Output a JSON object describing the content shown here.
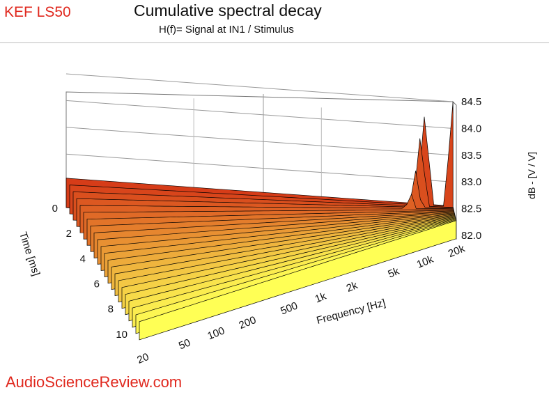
{
  "header": {
    "brand": "KEF LS50",
    "title": "Cumulative spectral decay",
    "subtitle": "H(f)= Signal at IN1 / Stimulus"
  },
  "footer": {
    "watermark": "AudioScienceReview.com"
  },
  "chart_data": {
    "type": "waterfall",
    "title": "Cumulative spectral decay",
    "subtitle": "H(f)= Signal at IN1 / Stimulus",
    "xlabel": "Frequency [Hz]",
    "ylabel": "Time [ms]",
    "zlabel": "dB - [V / V]",
    "x_scale": "log",
    "xlim": [
      20,
      20000
    ],
    "x_ticks": [
      20,
      50,
      100,
      200,
      500,
      1000,
      2000,
      5000,
      10000,
      20000
    ],
    "x_tick_labels": [
      "20",
      "50",
      "100",
      "200",
      "500",
      "1k",
      "2k",
      "5k",
      "10k",
      "20k"
    ],
    "ylim": [
      0,
      11
    ],
    "y_ticks": [
      0,
      2,
      4,
      6,
      8,
      10
    ],
    "y_tick_labels": [
      "0",
      "2",
      "4",
      "6",
      "8",
      "10"
    ],
    "zlim": [
      82.0,
      84.5
    ],
    "z_ticks": [
      82.0,
      82.5,
      83.0,
      83.5,
      84.0,
      84.5
    ],
    "z_tick_labels": [
      "82.0",
      "82.5",
      "83.0",
      "83.5",
      "84.0",
      "84.5"
    ],
    "slice_times_ms": [
      0,
      0.5,
      1,
      1.5,
      2,
      2.5,
      3,
      3.5,
      4,
      4.5,
      5,
      5.5,
      6,
      6.5,
      7,
      7.5,
      8,
      8.5,
      9,
      9.5,
      10,
      10.5
    ],
    "peaks": [
      {
        "time_ms": 0.5,
        "freq_hz": 20000,
        "level_db": 84.5
      },
      {
        "time_ms": 0.5,
        "freq_hz": 12000,
        "level_db": 84.2
      },
      {
        "time_ms": 1.0,
        "freq_hz": 11000,
        "level_db": 83.8
      },
      {
        "time_ms": 1.5,
        "freq_hz": 10000,
        "level_db": 83.2
      },
      {
        "time_ms": 2.0,
        "freq_hz": 9000,
        "level_db": 82.8
      },
      {
        "time_ms": 4.0,
        "freq_hz": 9000,
        "level_db": 82.4
      }
    ],
    "grid": true,
    "colors": {
      "front": "#ffff55",
      "back": "#d63c18",
      "peak": "#ff6a33",
      "outline": "#000000"
    }
  }
}
